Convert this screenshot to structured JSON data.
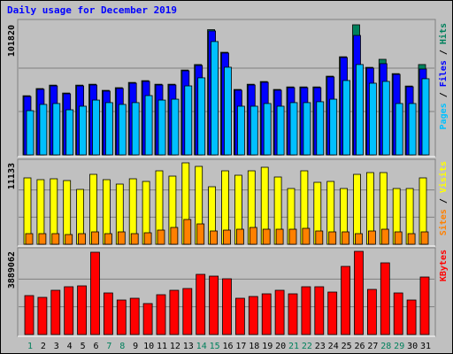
{
  "chart_data": [
    {
      "type": "bar",
      "title": "Daily usage for December 2019",
      "ylim": [
        0,
        101820
      ],
      "yticks": [
        101820
      ],
      "series": [
        {
          "name": "Hits",
          "color": "#00805c",
          "values": [
            46300,
            51900,
            54600,
            48400,
            54600,
            55300,
            50500,
            52600,
            56700,
            58100,
            55300,
            55300,
            66400,
            70700,
            98000,
            80300,
            51200,
            55300,
            57400,
            51200,
            53200,
            53200,
            53200,
            61600,
            76800,
            101820,
            68500,
            74800,
            63600,
            53900,
            70700
          ]
        },
        {
          "name": "Files",
          "color": "#0000ff",
          "values": [
            45700,
            51300,
            54000,
            47800,
            54000,
            54700,
            49900,
            52000,
            56100,
            57500,
            54700,
            54700,
            65800,
            70000,
            97000,
            79700,
            50600,
            54700,
            56800,
            50600,
            52600,
            52600,
            52600,
            61000,
            76200,
            93500,
            67900,
            71400,
            63000,
            53300,
            67200
          ]
        },
        {
          "name": "Pages",
          "color": "#00c0ff",
          "values": [
            34600,
            39500,
            40200,
            35300,
            38100,
            42900,
            40900,
            39500,
            40900,
            46400,
            42900,
            43600,
            54000,
            60300,
            88700,
            68600,
            38100,
            38100,
            40200,
            38100,
            40900,
            40900,
            41600,
            43600,
            58200,
            70700,
            56100,
            57500,
            40200,
            40200,
            59600
          ]
        }
      ]
    },
    {
      "type": "bar",
      "ylim": [
        0,
        11133
      ],
      "yticks": [
        11133
      ],
      "series": [
        {
          "name": "Visits",
          "color": "#ffff00",
          "values": [
            9075,
            8833,
            8954,
            8712,
            7502,
            9559,
            8833,
            8228,
            8954,
            8591,
            10043,
            9317,
            11133,
            10648,
            7865,
            10043,
            9438,
            10043,
            10527,
            9196,
            7623,
            10043,
            8470,
            8591,
            7623,
            9559,
            9801,
            9801,
            7623,
            7623,
            9075
          ]
        },
        {
          "name": "Sites",
          "color": "#ff8000",
          "values": [
            1452,
            1452,
            1452,
            1331,
            1452,
            1694,
            1452,
            1694,
            1452,
            1573,
            1936,
            2299,
            3388,
            2783,
            1815,
            1936,
            2057,
            2299,
            2057,
            2057,
            2057,
            2178,
            1815,
            1694,
            1694,
            1452,
            1815,
            2057,
            1694,
            1452,
            1694
          ]
        }
      ]
    },
    {
      "type": "bar",
      "ylim": [
        0,
        3889062
      ],
      "yticks": [
        3889062
      ],
      "categories": [
        "1",
        "2",
        "3",
        "4",
        "5",
        "6",
        "7",
        "8",
        "9",
        "10",
        "11",
        "12",
        "13",
        "14",
        "15",
        "16",
        "17",
        "18",
        "19",
        "20",
        "21",
        "22",
        "23",
        "24",
        "25",
        "26",
        "27",
        "28",
        "29",
        "30",
        "31"
      ],
      "category_colors": [
        "#00805c",
        "#000000",
        "#000000",
        "#000000",
        "#000000",
        "#000000",
        "#00805c",
        "#00805c",
        "#000000",
        "#000000",
        "#000000",
        "#000000",
        "#000000",
        "#00805c",
        "#00805c",
        "#000000",
        "#000000",
        "#000000",
        "#000000",
        "#000000",
        "#00805c",
        "#00805c",
        "#000000",
        "#000000",
        "#000000",
        "#000000",
        "#000000",
        "#00805c",
        "#00805c",
        "#000000",
        "#000000"
      ],
      "series": [
        {
          "name": "KBytes",
          "color": "#ff0000",
          "values": [
            1820400,
            1737700,
            2068700,
            2234100,
            2275500,
            3847700,
            1944500,
            1613500,
            1696300,
            1448100,
            1861800,
            2068700,
            2151400,
            2813400,
            2730600,
            2606500,
            1696300,
            1779000,
            1903200,
            2068700,
            1903200,
            2234100,
            2234100,
            1985900,
            3185700,
            3889062,
            2110000,
            3351200,
            1944500,
            1613500,
            2689200
          ]
        }
      ]
    }
  ]
}
